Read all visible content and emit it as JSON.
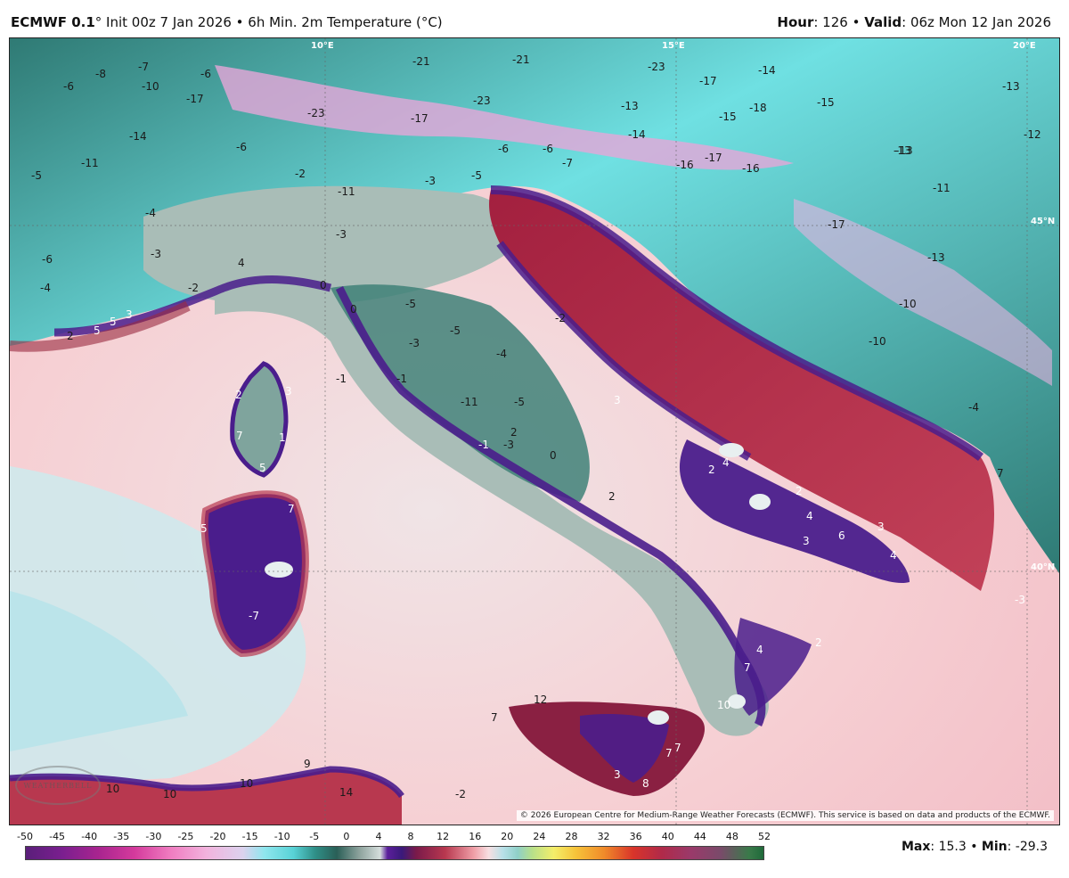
{
  "header": {
    "model": "ECMWF 0.1",
    "model_suffix": "°",
    "description": " Init 00z 7 Jan 2026 • 6h Min. 2m Temperature (°C)",
    "hour_label": "Hour",
    "hour_value": ": 126 • ",
    "valid_label": "Valid",
    "valid_value": ": 06z Mon 12 Jan 2026"
  },
  "map": {
    "copyright": "© 2026 European Centre for Medium-Range Weather Forecasts (ECMWF). This service is based on data and products of the ECMWF.",
    "logo": "WEATHERBELL",
    "gridline_labels": [
      "10°E",
      "15°E",
      "20°E",
      "45°N",
      "40°N"
    ],
    "colors": {
      "sea_pink": "#f6cfd3",
      "sea_light": "#f0e4e6",
      "sea_cyan": "#bfe6ea",
      "warm_red": "#9a2a40",
      "coast_purple": "#4a1d8c",
      "cold_teal": "#2f7a74",
      "cold_cyan": "#6fe0e2",
      "cold_pink": "#e6a6d8",
      "land_gray": "#a9bdb7"
    },
    "temperature_labels": [
      {
        "id": "t1",
        "v": "-6"
      },
      {
        "id": "t2",
        "v": "-8"
      },
      {
        "id": "t3",
        "v": "-7"
      },
      {
        "id": "t4",
        "v": "-10"
      },
      {
        "id": "t5",
        "v": "-6"
      },
      {
        "id": "t6",
        "v": "-17"
      },
      {
        "id": "t7",
        "v": "-21"
      },
      {
        "id": "t8",
        "v": "-21"
      },
      {
        "id": "t9",
        "v": "-23"
      },
      {
        "id": "t10",
        "v": "-17"
      },
      {
        "id": "t11",
        "v": "-14"
      },
      {
        "id": "t12",
        "v": "-13"
      },
      {
        "id": "t13",
        "v": "-23"
      },
      {
        "id": "t14",
        "v": "-17"
      },
      {
        "id": "t15",
        "v": "-23"
      },
      {
        "id": "t16",
        "v": "-13"
      },
      {
        "id": "t17",
        "v": "-14"
      },
      {
        "id": "t18",
        "v": "-15"
      },
      {
        "id": "t19",
        "v": "-18"
      },
      {
        "id": "t20",
        "v": "-15"
      },
      {
        "id": "t21",
        "v": "-13"
      },
      {
        "id": "t22",
        "v": "-12"
      },
      {
        "id": "t23",
        "v": "-14"
      },
      {
        "id": "t24",
        "v": "-6"
      },
      {
        "id": "t25",
        "v": "-11"
      },
      {
        "id": "t26",
        "v": "-5"
      },
      {
        "id": "t27",
        "v": "-6"
      },
      {
        "id": "t28",
        "v": "-2"
      },
      {
        "id": "t29",
        "v": "-11"
      },
      {
        "id": "t30",
        "v": "-3"
      },
      {
        "id": "t31",
        "v": "-5"
      },
      {
        "id": "t32",
        "v": "-6"
      },
      {
        "id": "t33",
        "v": "-7"
      },
      {
        "id": "t34",
        "v": "-16"
      },
      {
        "id": "t35",
        "v": "-17"
      },
      {
        "id": "t36",
        "v": "-16"
      },
      {
        "id": "t37",
        "v": "-13"
      },
      {
        "id": "t38",
        "v": "-11"
      },
      {
        "id": "t39",
        "v": "-17"
      },
      {
        "id": "t40",
        "v": "-13"
      },
      {
        "id": "t41",
        "v": "-10"
      },
      {
        "id": "t42",
        "v": "-10"
      },
      {
        "id": "t43",
        "v": "-4"
      },
      {
        "id": "t44",
        "v": "-3"
      },
      {
        "id": "t45",
        "v": "-6"
      },
      {
        "id": "t46",
        "v": "-4"
      },
      {
        "id": "t47",
        "v": "4"
      },
      {
        "id": "t48",
        "v": "-2"
      },
      {
        "id": "t49",
        "v": "0"
      },
      {
        "id": "t50",
        "v": "-3"
      },
      {
        "id": "t51",
        "v": "-5"
      },
      {
        "id": "t52",
        "v": "-5"
      },
      {
        "id": "t53",
        "v": "-3"
      },
      {
        "id": "t54",
        "v": "-4"
      },
      {
        "id": "t55",
        "v": "-2"
      },
      {
        "id": "t56",
        "v": "0"
      },
      {
        "id": "t57",
        "v": "2"
      },
      {
        "id": "t58",
        "v": "5"
      },
      {
        "id": "t59",
        "v": "5"
      },
      {
        "id": "t60",
        "v": "3"
      },
      {
        "id": "t61",
        "v": "2"
      },
      {
        "id": "t62",
        "v": "3"
      },
      {
        "id": "t63",
        "v": "7"
      },
      {
        "id": "t64",
        "v": "1"
      },
      {
        "id": "t65",
        "v": "5"
      },
      {
        "id": "t66",
        "v": "7"
      },
      {
        "id": "t67",
        "v": "5"
      },
      {
        "id": "t68",
        "v": "-7"
      },
      {
        "id": "t69",
        "v": "-1"
      },
      {
        "id": "t70",
        "v": "-1"
      },
      {
        "id": "t71",
        "v": "-11"
      },
      {
        "id": "t72",
        "v": "-5"
      },
      {
        "id": "t73",
        "v": "2"
      },
      {
        "id": "t74",
        "v": "-1"
      },
      {
        "id": "t75",
        "v": "-3"
      },
      {
        "id": "t76",
        "v": "0"
      },
      {
        "id": "t77",
        "v": "2"
      },
      {
        "id": "t78",
        "v": "3"
      },
      {
        "id": "t79",
        "v": "2"
      },
      {
        "id": "t80",
        "v": "4"
      },
      {
        "id": "t81",
        "v": "2"
      },
      {
        "id": "t82",
        "v": "4"
      },
      {
        "id": "t83",
        "v": "3"
      },
      {
        "id": "t84",
        "v": "6"
      },
      {
        "id": "t85",
        "v": "3"
      },
      {
        "id": "t86",
        "v": "4"
      },
      {
        "id": "t87",
        "v": "2"
      },
      {
        "id": "t88",
        "v": "4"
      },
      {
        "id": "t89",
        "v": "7"
      },
      {
        "id": "t90",
        "v": "10"
      },
      {
        "id": "t91",
        "v": "12"
      },
      {
        "id": "t92",
        "v": "7"
      },
      {
        "id": "t93",
        "v": "7"
      },
      {
        "id": "t94",
        "v": "7"
      },
      {
        "id": "t95",
        "v": "3"
      },
      {
        "id": "t96",
        "v": "8"
      },
      {
        "id": "t97",
        "v": "10"
      },
      {
        "id": "t98",
        "v": "10"
      },
      {
        "id": "t99",
        "v": "10"
      },
      {
        "id": "t100",
        "v": "9"
      },
      {
        "id": "t101",
        "v": "14"
      },
      {
        "id": "t102",
        "v": "-2"
      },
      {
        "id": "t103",
        "v": "-4"
      },
      {
        "id": "t104",
        "v": "7"
      },
      {
        "id": "t105",
        "v": "-3"
      }
    ]
  },
  "colorbar": {
    "labels": [
      "-50",
      "-45",
      "-40",
      "-35",
      "-30",
      "-25",
      "-20",
      "-15",
      "-10",
      "-5",
      "0",
      "4",
      "8",
      "12",
      "16",
      "20",
      "24",
      "28",
      "32",
      "36",
      "40",
      "44",
      "48",
      "52"
    ],
    "min": -50,
    "max": 52,
    "stops": [
      {
        "t": -50,
        "c": "#5a1f7a"
      },
      {
        "t": -45,
        "c": "#7a1f8f"
      },
      {
        "t": -40,
        "c": "#a8248f"
      },
      {
        "t": -35,
        "c": "#d43a9c"
      },
      {
        "t": -30,
        "c": "#ef7cc0"
      },
      {
        "t": -25,
        "c": "#f2b3dd"
      },
      {
        "t": -20,
        "c": "#dcd2ee"
      },
      {
        "t": -17,
        "c": "#8fe6ee"
      },
      {
        "t": -13,
        "c": "#58d2d6"
      },
      {
        "t": -10,
        "c": "#2f8f88"
      },
      {
        "t": -7,
        "c": "#2a5f57"
      },
      {
        "t": -4,
        "c": "#8aa09a"
      },
      {
        "t": -1,
        "c": "#d5dedc"
      },
      {
        "t": 0,
        "c": "#5b1f9c"
      },
      {
        "t": 2,
        "c": "#3a1a7a"
      },
      {
        "t": 4,
        "c": "#7a1a4a"
      },
      {
        "t": 8,
        "c": "#b8384f"
      },
      {
        "t": 12,
        "c": "#f0a0a8"
      },
      {
        "t": 14,
        "c": "#f7dfe2"
      },
      {
        "t": 16,
        "c": "#b7e0e8"
      },
      {
        "t": 18,
        "c": "#8fd0c8"
      },
      {
        "t": 20,
        "c": "#b7e08a"
      },
      {
        "t": 23,
        "c": "#f4ee6a"
      },
      {
        "t": 26,
        "c": "#f6c43a"
      },
      {
        "t": 30,
        "c": "#f08a2a"
      },
      {
        "t": 34,
        "c": "#d9342a"
      },
      {
        "t": 38,
        "c": "#b02a4a"
      },
      {
        "t": 42,
        "c": "#9a3a6a"
      },
      {
        "t": 46,
        "c": "#7a4a6a"
      },
      {
        "t": 50,
        "c": "#3a7a4a"
      },
      {
        "t": 52,
        "c": "#1f6a3a"
      }
    ]
  },
  "stats": {
    "max_label": "Max",
    "max_value": ": 15.3 • ",
    "min_label": "Min",
    "min_value": ": -29.3"
  }
}
